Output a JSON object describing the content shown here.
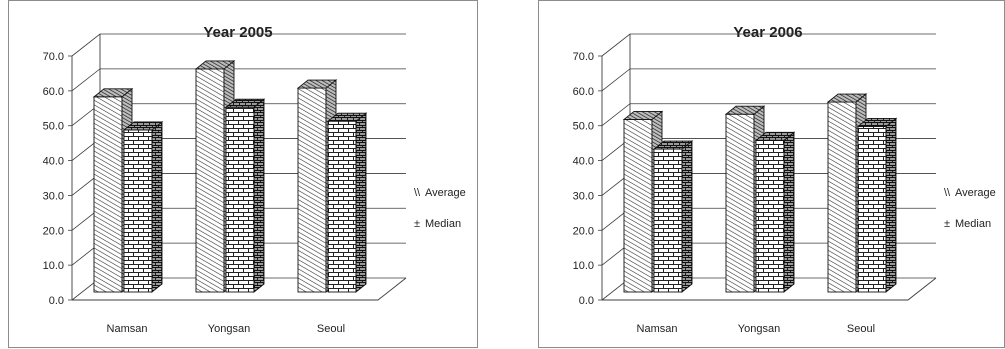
{
  "chart_data": [
    {
      "type": "bar",
      "title": "Year 2005",
      "categories": [
        "Namsan",
        "Yongsan",
        "Seoul"
      ],
      "series": [
        {
          "name": "Average",
          "values": [
            56.0,
            64.0,
            58.5
          ]
        },
        {
          "name": "Median",
          "values": [
            46.5,
            53.0,
            49.0
          ]
        }
      ],
      "ylim": [
        0,
        70
      ],
      "yticks": [
        "0.0",
        "10.0",
        "20.0",
        "30.0",
        "40.0",
        "50.0",
        "60.0",
        "70.0"
      ],
      "grid": true,
      "legend": "right",
      "style": "3d"
    },
    {
      "type": "bar",
      "title": "Year 2006",
      "categories": [
        "Namsan",
        "Yongsan",
        "Seoul"
      ],
      "series": [
        {
          "name": "Average",
          "values": [
            49.5,
            51.0,
            54.5
          ]
        },
        {
          "name": "Median",
          "values": [
            41.0,
            43.5,
            47.5
          ]
        }
      ],
      "ylim": [
        0,
        70
      ],
      "yticks": [
        "0.0",
        "10.0",
        "20.0",
        "30.0",
        "40.0",
        "50.0",
        "60.0",
        "70.0"
      ],
      "grid": true,
      "legend": "right",
      "style": "3d"
    }
  ],
  "legend_symbols": [
    "\\\\",
    "±"
  ],
  "colors": {
    "frame": "#8c8c8c",
    "line": "#3c3c3c",
    "bar_face": "#ffffff",
    "bar_pattern": "#222222"
  }
}
